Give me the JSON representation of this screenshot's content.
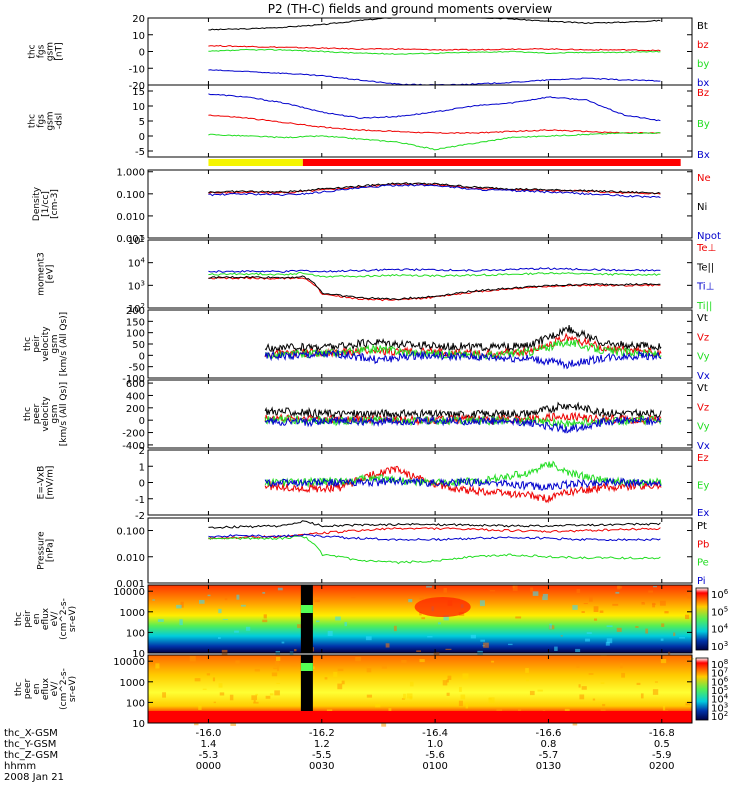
{
  "title": "P2 (TH-C) fields and ground moments overview",
  "colors": {
    "black": "#000000",
    "red": "#ee0000",
    "green": "#22dd22",
    "blue": "#0000cc",
    "yellow": "#f5f500",
    "bar_red": "#ff0000"
  },
  "footer": {
    "rows": [
      {
        "label": "thc_X-GSM",
        "values": [
          "-16.0",
          "-16.2",
          "-16.4",
          "-16.6",
          "-16.8"
        ]
      },
      {
        "label": "thc_Y-GSM",
        "values": [
          "1.4",
          "1.2",
          "1.0",
          "0.8",
          "0.5"
        ]
      },
      {
        "label": "thc_Z-GSM",
        "values": [
          "-5.3",
          "-5.5",
          "-5.6",
          "-5.7",
          "-5.9"
        ]
      },
      {
        "label": "hhmm",
        "values": [
          "0000",
          "0030",
          "0100",
          "0130",
          "0200"
        ]
      }
    ],
    "date": "2008 Jan 21"
  },
  "chart_data": [
    {
      "type": "line",
      "id": "fgs",
      "ylabel_lines": [
        "thc",
        "fgs",
        "gsm",
        "[nT]"
      ],
      "ylim": [
        -20,
        20
      ],
      "log": false,
      "yticks": [
        "20",
        "10",
        "0",
        "-10",
        "-20"
      ],
      "x_hhmm": [
        0,
        10,
        20,
        30,
        40,
        50,
        60,
        70,
        80,
        90,
        100,
        110,
        120
      ],
      "series": [
        {
          "name": "Bt",
          "color": "#000000",
          "values": [
            13,
            13.5,
            14.5,
            16,
            18.5,
            20.5,
            21,
            20.5,
            19.5,
            18,
            17,
            17.5,
            18.5
          ]
        },
        {
          "name": "bz",
          "color": "#ee0000",
          "values": [
            3.5,
            3,
            2.5,
            2,
            1.5,
            1.5,
            1,
            1,
            1.5,
            1.5,
            1,
            1,
            0.5
          ]
        },
        {
          "name": "by",
          "color": "#22dd22",
          "values": [
            0,
            1,
            1,
            0,
            -1,
            -1.5,
            -1,
            -0.5,
            0,
            -1,
            -0.5,
            -0.5,
            0
          ]
        },
        {
          "name": "bx",
          "color": "#0000cc",
          "values": [
            -11,
            -12,
            -13,
            -14.5,
            -17,
            -19.5,
            -20,
            -19.5,
            -18.5,
            -17,
            -16,
            -17,
            -17.5
          ]
        }
      ]
    },
    {
      "type": "line",
      "id": "fgs-dsl",
      "ylabel_lines": [
        "thc",
        "fgs",
        "gsm",
        "-dsl"
      ],
      "ylim": [
        -7,
        17
      ],
      "log": false,
      "yticks": [
        "15",
        "10",
        "5",
        "0",
        "-5"
      ],
      "x_hhmm": [
        0,
        10,
        20,
        30,
        40,
        50,
        60,
        70,
        80,
        90,
        100,
        110,
        120
      ],
      "series": [
        {
          "name": "Bz",
          "color": "#ee0000",
          "values": [
            7,
            6,
            4.5,
            3,
            2,
            1.5,
            1,
            1,
            1.5,
            2,
            1.5,
            1,
            1
          ]
        },
        {
          "name": "By",
          "color": "#22dd22",
          "values": [
            0.5,
            0,
            -0.5,
            0,
            -1,
            -2,
            -4.5,
            -2.5,
            -0.5,
            0,
            0.5,
            1,
            1
          ]
        },
        {
          "name": "Bx",
          "color": "#0000cc",
          "values": [
            14,
            13,
            11,
            8,
            6,
            6.5,
            8,
            10,
            11,
            13,
            12,
            7,
            5
          ]
        }
      ]
    },
    {
      "type": "bar",
      "id": "mode-bar",
      "segments": [
        {
          "start_hhmm": 0,
          "end_hhmm": 25,
          "color": "#f5f500"
        },
        {
          "start_hhmm": 25,
          "end_hhmm": 125,
          "color": "#ff0000"
        }
      ]
    },
    {
      "type": "line",
      "id": "density",
      "ylabel_lines": [
        "Density",
        "[1/cc]",
        "[cm-3]"
      ],
      "ylim": [
        0.001,
        1.2
      ],
      "log": true,
      "yticks": [
        "1.000",
        "0.100",
        "0.010",
        "0.001"
      ],
      "ytick_values": [
        1,
        0.1,
        0.01,
        0.001
      ],
      "x_hhmm": [
        0,
        10,
        20,
        25,
        30,
        40,
        50,
        60,
        70,
        80,
        90,
        100,
        110,
        120
      ],
      "series": [
        {
          "name": "Ne",
          "color": "#ee0000",
          "values": [
            0.11,
            0.12,
            0.11,
            0.13,
            0.15,
            0.2,
            0.28,
            0.26,
            0.18,
            0.16,
            0.14,
            0.13,
            0.11,
            0.1
          ]
        },
        {
          "name": "Ni",
          "color": "#000000",
          "values": [
            0.12,
            0.13,
            0.12,
            0.14,
            0.17,
            0.22,
            0.3,
            0.28,
            0.2,
            0.17,
            0.15,
            0.14,
            0.12,
            0.11
          ]
        },
        {
          "name": "Npot",
          "color": "#0000cc",
          "values": [
            0.09,
            0.1,
            0.09,
            0.1,
            0.12,
            0.18,
            0.25,
            0.24,
            0.16,
            0.14,
            0.12,
            0.1,
            0.08,
            0.07
          ]
        }
      ]
    },
    {
      "type": "line",
      "id": "temperature",
      "ylabel_lines": [
        "moment3",
        "[eV]"
      ],
      "ylim": [
        100,
        100000
      ],
      "log": true,
      "yticks": [
        "10^5",
        "10^4",
        "10^3",
        "10^2"
      ],
      "ytick_values": [
        100000,
        10000,
        1000,
        100
      ],
      "x_hhmm": [
        0,
        10,
        20,
        25,
        30,
        40,
        50,
        60,
        70,
        80,
        90,
        100,
        110,
        120
      ],
      "series": [
        {
          "name": "Te⊥",
          "color": "#ee0000",
          "values": [
            2000,
            2100,
            2000,
            2200,
            400,
            250,
            220,
            300,
            500,
            700,
            900,
            1000,
            1000,
            1000
          ]
        },
        {
          "name": "Te||",
          "color": "#000000",
          "values": [
            2200,
            2300,
            2200,
            2400,
            450,
            280,
            250,
            320,
            550,
            750,
            950,
            1100,
            1100,
            1100
          ]
        },
        {
          "name": "Ti⊥",
          "color": "#0000cc",
          "values": [
            4000,
            4200,
            4000,
            4500,
            4000,
            4500,
            5000,
            4800,
            4500,
            5000,
            5500,
            5000,
            4500,
            4500
          ]
        },
        {
          "name": "Ti||",
          "color": "#22dd22",
          "values": [
            3000,
            3200,
            3000,
            3500,
            2500,
            2500,
            2800,
            2600,
            2800,
            3000,
            3500,
            3200,
            3000,
            3000
          ]
        }
      ]
    },
    {
      "type": "line",
      "id": "peir-velocity",
      "ylabel_lines": [
        "thc",
        "peir",
        "velocity",
        "gsm",
        "[km/s (All Qs)]"
      ],
      "ylim": [
        -100,
        200
      ],
      "log": false,
      "yticks": [
        "200",
        "150",
        "100",
        "50",
        "0",
        "-50",
        "-100"
      ],
      "x_hhmm": [
        15,
        25,
        35,
        45,
        55,
        65,
        75,
        85,
        95,
        105,
        115,
        120
      ],
      "series": [
        {
          "name": "Vt",
          "color": "#000000",
          "values": [
            30,
            35,
            40,
            60,
            45,
            40,
            35,
            40,
            120,
            50,
            40,
            35
          ]
        },
        {
          "name": "Vz",
          "color": "#ee0000",
          "values": [
            5,
            10,
            15,
            20,
            15,
            10,
            5,
            20,
            80,
            30,
            15,
            10
          ]
        },
        {
          "name": "Vy",
          "color": "#22dd22",
          "values": [
            0,
            5,
            10,
            30,
            10,
            5,
            0,
            15,
            60,
            20,
            10,
            5
          ]
        },
        {
          "name": "Vx",
          "color": "#0000cc",
          "values": [
            -5,
            0,
            5,
            -20,
            0,
            -5,
            -10,
            -15,
            -40,
            -10,
            0,
            -5
          ]
        }
      ]
    },
    {
      "type": "line",
      "id": "peer-velocity",
      "ylabel_lines": [
        "thc",
        "peer",
        "velocity",
        "gsm",
        "[km/s (All Qs)]"
      ],
      "ylim": [
        -450,
        650
      ],
      "log": false,
      "yticks": [
        "600",
        "400",
        "200",
        "0",
        "-200",
        "-400"
      ],
      "x_hhmm": [
        15,
        25,
        35,
        45,
        55,
        65,
        75,
        85,
        95,
        105,
        115,
        120
      ],
      "series": [
        {
          "name": "Vt",
          "color": "#000000",
          "values": [
            150,
            120,
            100,
            110,
            100,
            90,
            100,
            110,
            250,
            120,
            100,
            100
          ]
        },
        {
          "name": "Vz",
          "color": "#ee0000",
          "values": [
            20,
            20,
            10,
            10,
            0,
            10,
            10,
            20,
            60,
            20,
            10,
            10
          ]
        },
        {
          "name": "Vy",
          "color": "#22dd22",
          "values": [
            0,
            10,
            -20,
            0,
            -10,
            0,
            -10,
            0,
            -60,
            -10,
            0,
            0
          ]
        },
        {
          "name": "Vx",
          "color": "#0000cc",
          "values": [
            -20,
            -30,
            -10,
            -20,
            -20,
            -10,
            -20,
            -40,
            -150,
            -20,
            -10,
            -20
          ]
        }
      ]
    },
    {
      "type": "line",
      "id": "e-field",
      "ylabel_lines": [
        "E=-VxB",
        "[mV/m]"
      ],
      "ylim": [
        -2,
        2
      ],
      "log": false,
      "yticks": [
        "2",
        "1",
        "0",
        "-1",
        "-2"
      ],
      "x_hhmm": [
        15,
        25,
        35,
        45,
        50,
        55,
        65,
        75,
        85,
        90,
        95,
        105,
        115,
        120
      ],
      "series": [
        {
          "name": "Ez",
          "color": "#ee0000",
          "values": [
            -0.2,
            -0.4,
            -0.3,
            0.6,
            0.8,
            0.3,
            -0.4,
            -0.6,
            -0.8,
            -1,
            -0.6,
            -0.3,
            -0.2,
            -0.2
          ]
        },
        {
          "name": "Ey",
          "color": "#22dd22",
          "values": [
            0,
            0,
            0.1,
            0.3,
            0.2,
            0,
            0,
            0.2,
            0.6,
            1.2,
            0.6,
            0.1,
            0,
            0
          ]
        },
        {
          "name": "Ex",
          "color": "#0000cc",
          "values": [
            0,
            0,
            0,
            0,
            0.1,
            0,
            0,
            0,
            -0.2,
            -0.3,
            -0.1,
            0,
            0,
            0
          ]
        }
      ]
    },
    {
      "type": "line",
      "id": "pressure",
      "ylabel_lines": [
        "Pressure",
        "[nPa]"
      ],
      "ylim": [
        0.001,
        0.3
      ],
      "log": true,
      "yticks": [
        "0.100",
        "0.010",
        "0.001"
      ],
      "ytick_values": [
        0.1,
        0.01,
        0.001
      ],
      "x_hhmm": [
        0,
        10,
        20,
        25,
        30,
        40,
        50,
        60,
        70,
        80,
        90,
        100,
        110,
        120
      ],
      "series": [
        {
          "name": "Pt",
          "color": "#000000",
          "values": [
            0.13,
            0.14,
            0.15,
            0.22,
            0.15,
            0.16,
            0.17,
            0.17,
            0.16,
            0.15,
            0.15,
            0.16,
            0.17,
            0.18
          ]
        },
        {
          "name": "Pb",
          "color": "#ee0000",
          "values": [
            0.05,
            0.055,
            0.06,
            0.07,
            0.08,
            0.1,
            0.12,
            0.12,
            0.11,
            0.1,
            0.09,
            0.1,
            0.11,
            0.12
          ]
        },
        {
          "name": "Pe",
          "color": "#22dd22",
          "values": [
            0.05,
            0.05,
            0.05,
            0.06,
            0.012,
            0.007,
            0.006,
            0.007,
            0.01,
            0.012,
            0.01,
            0.009,
            0.009,
            0.009
          ]
        },
        {
          "name": "Pi",
          "color": "#0000cc",
          "values": [
            0.06,
            0.065,
            0.06,
            0.07,
            0.06,
            0.05,
            0.045,
            0.045,
            0.05,
            0.055,
            0.05,
            0.045,
            0.045,
            0.045
          ]
        }
      ]
    },
    {
      "type": "heatmap",
      "id": "peir-spectrogram",
      "ylabel_lines": [
        "thc",
        "peir",
        "en",
        "eflux",
        "eV/",
        "(cm^2-s-",
        "sr-eV)"
      ],
      "ylim": [
        10,
        20000
      ],
      "log": true,
      "yticks": [
        "10000",
        "1000",
        "100",
        "10"
      ],
      "ytick_values": [
        10000,
        1000,
        100,
        10
      ],
      "colorbar_ticks": [
        "10^6",
        "10^5",
        "10^4",
        "10^3"
      ]
    },
    {
      "type": "heatmap",
      "id": "peer-spectrogram",
      "ylabel_lines": [
        "thc",
        "peer",
        "en",
        "eflux",
        "eV/",
        "(cm^2-s-",
        "sr-eV)"
      ],
      "ylim": [
        10,
        20000
      ],
      "log": true,
      "yticks": [
        "10000",
        "1000",
        "100",
        "10"
      ],
      "ytick_values": [
        10000,
        1000,
        100,
        10
      ],
      "colorbar_ticks": [
        "10^8",
        "10^7",
        "10^6",
        "10^5",
        "10^4",
        "10^3",
        "10^2"
      ]
    }
  ]
}
